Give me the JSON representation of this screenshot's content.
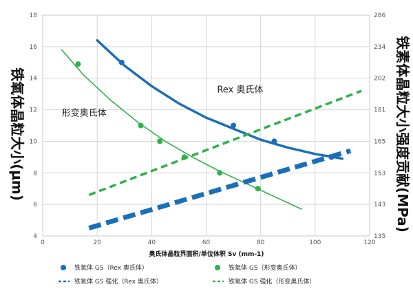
{
  "chart_data": {
    "type": "scatter",
    "title": "",
    "xlabel": "奥氏体晶粒界面积/单位体积 Sv (mm-1)",
    "ylabel_left": "铁氧体晶粒大小(μm)",
    "ylabel_right": "铁素体晶粒大小强度贡献(MPa)",
    "xlim": [
      0,
      120
    ],
    "ylim_left": [
      4,
      18
    ],
    "ylim_right": [
      135,
      286
    ],
    "xticks": [
      0,
      20,
      40,
      60,
      80,
      100,
      120
    ],
    "yticks_left": [
      4,
      6,
      8,
      10,
      12,
      14,
      16,
      18
    ],
    "yticks_right": [
      135,
      143,
      153,
      165,
      181,
      202,
      234,
      286
    ],
    "grid": true,
    "legend_position": "bottom",
    "annotations": [
      {
        "text": "Rex 奥氏体",
        "x": 64,
        "y": 13.1
      },
      {
        "text": "形变奥氏体",
        "x": 7,
        "y": 11.6
      }
    ],
    "series": [
      {
        "name": "铁氧体 GS（Rex 奥氏体）",
        "kind": "points",
        "axis": "left",
        "color": "#1a6fb8",
        "x": [
          29,
          70,
          85,
          106
        ],
        "y": [
          15.0,
          11.0,
          10.0,
          9.0
        ]
      },
      {
        "name": "铁氧体 GS（形变奥氏体）",
        "kind": "points",
        "axis": "left",
        "color": "#2db24a",
        "x": [
          13,
          36,
          43,
          52,
          65,
          79
        ],
        "y": [
          14.9,
          11.0,
          10.0,
          9.0,
          8.0,
          7.0
        ]
      },
      {
        "name": "",
        "kind": "curve",
        "axis": "left",
        "color": "#1a6fb8",
        "x": [
          20,
          30,
          40,
          50,
          60,
          70,
          80,
          90,
          100,
          110
        ],
        "y": [
          16.4,
          14.8,
          13.5,
          12.4,
          11.5,
          10.8,
          10.1,
          9.6,
          9.2,
          8.9
        ]
      },
      {
        "name": "",
        "kind": "curve",
        "axis": "left",
        "color": "#2db24a",
        "x": [
          7,
          15,
          25,
          35,
          45,
          55,
          65,
          75,
          85,
          95
        ],
        "y": [
          15.8,
          14.2,
          12.6,
          11.2,
          10.0,
          9.0,
          8.1,
          7.3,
          6.5,
          5.7
        ]
      },
      {
        "name": "铁氧体 GS 强化（Rex 奥氏体）",
        "kind": "dashed",
        "axis": "left",
        "color": "#1a6fb8",
        "x": [
          17,
          113
        ],
        "y": [
          4.5,
          9.4
        ]
      },
      {
        "name": "铁氧体 GS 强化（形变奥氏体）",
        "kind": "dashed",
        "axis": "left",
        "color": "#2db24a",
        "x": [
          17,
          117
        ],
        "y": [
          6.6,
          13.2
        ]
      }
    ]
  }
}
